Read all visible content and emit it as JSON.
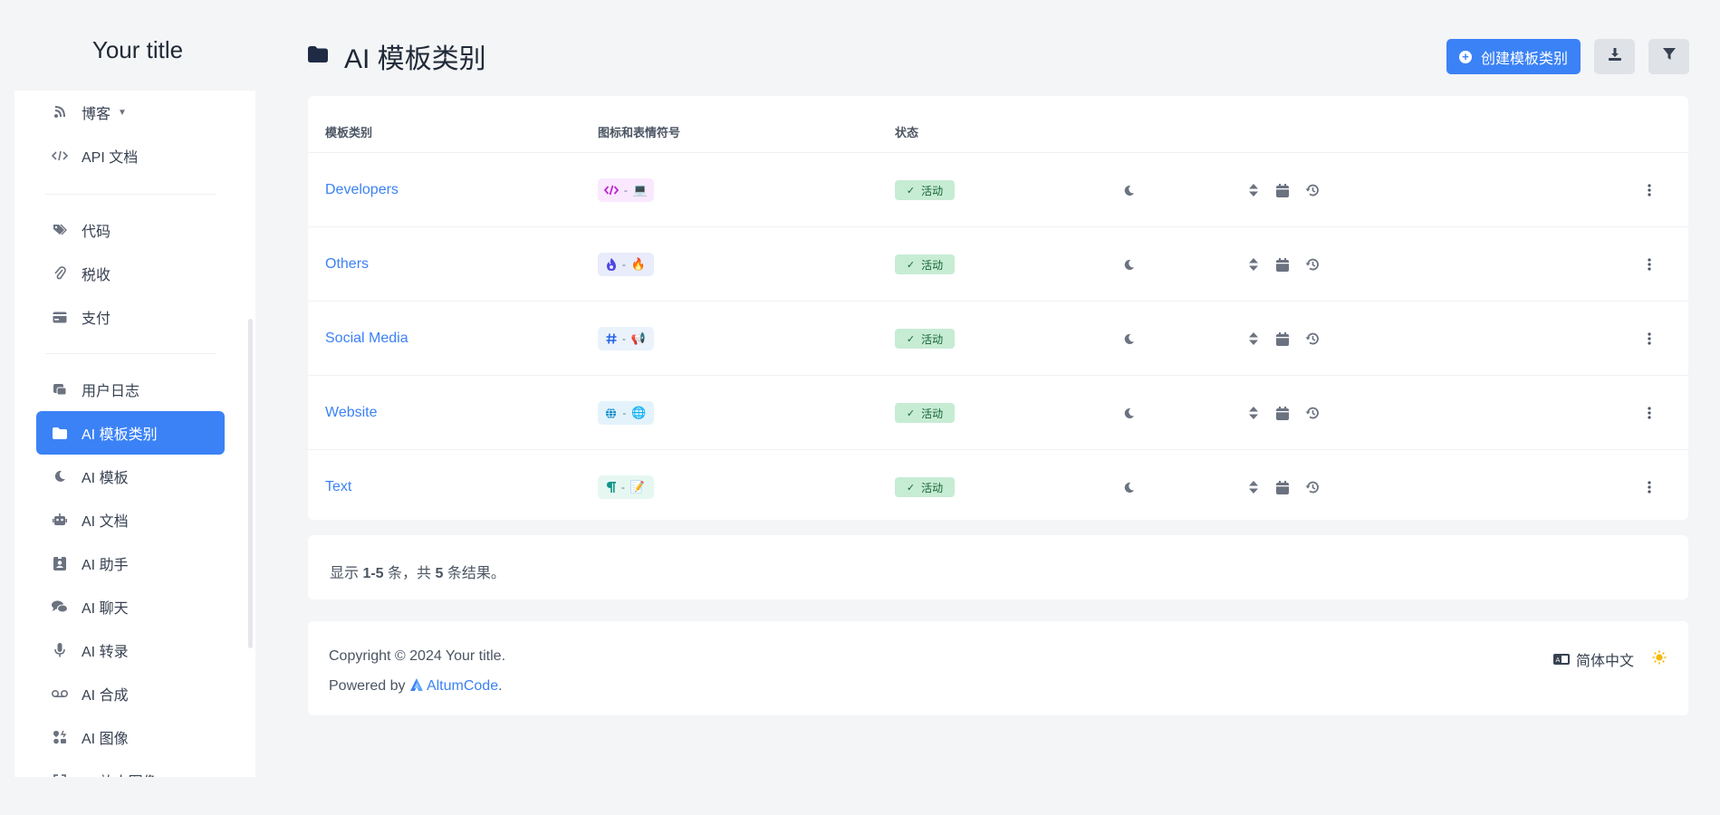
{
  "brand": {
    "title": "Your title"
  },
  "sidebar": {
    "items": [
      {
        "label": "博客"
      },
      {
        "label": "API 文档"
      },
      {
        "label": "代码"
      },
      {
        "label": "税收"
      },
      {
        "label": "支付"
      },
      {
        "label": "用户日志"
      },
      {
        "label": "AI 模板类别"
      },
      {
        "label": "AI 模板"
      },
      {
        "label": "AI 文档"
      },
      {
        "label": "AI 助手"
      },
      {
        "label": "AI 聊天"
      },
      {
        "label": "AI 转录"
      },
      {
        "label": "AI 合成"
      },
      {
        "label": "AI 图像"
      },
      {
        "label": "AI 放大图像"
      }
    ]
  },
  "header": {
    "title": "AI 模板类别",
    "create_label": "创建模板类别"
  },
  "table": {
    "columns": [
      "模板类别",
      "图标和表情符号",
      "状态"
    ],
    "rows": [
      {
        "name": "Developers",
        "emoji": "💻",
        "status": "活动"
      },
      {
        "name": "Others",
        "emoji": "🔥",
        "status": "活动"
      },
      {
        "name": "Social Media",
        "emoji": "📢",
        "status": "活动"
      },
      {
        "name": "Website",
        "emoji": "🌐",
        "status": "活动"
      },
      {
        "name": "Text",
        "emoji": "📝",
        "status": "活动"
      }
    ]
  },
  "pagination": {
    "prefix": "显示 ",
    "range": "1-5",
    "mid": " 条，共 ",
    "total": "5",
    "suffix": " 条结果。"
  },
  "footer": {
    "copyright": "Copyright © 2024 Your title.",
    "powered_prefix": "Powered by ",
    "powered_link": "AltumCode",
    "powered_suffix": ".",
    "language": "简体中文"
  },
  "colors": {
    "accent": "#3b82f6",
    "status_bg": "#c7ecd4",
    "status_text": "#166534",
    "sun": "#f5b800"
  }
}
